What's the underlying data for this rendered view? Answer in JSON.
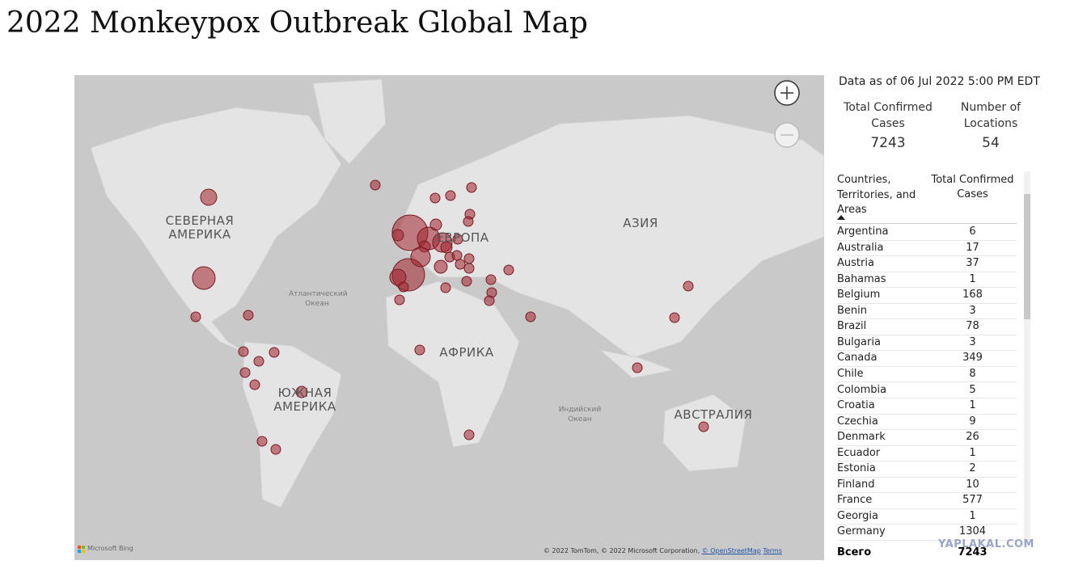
{
  "header": {
    "title": "2022 Monkeypox Outbreak Global Map"
  },
  "map": {
    "labels": [
      "СЕВЕРНАЯ АМЕРИКА",
      "ЕВРОПА",
      "АЗИЯ",
      "АФРИКА",
      "ЮЖНАЯ АМЕРИКА",
      "АВСТРАЛИЯ"
    ],
    "ocean_labels": [
      "Атлантический Океан",
      "Индийский Океан"
    ],
    "provider": "Microsoft Bing",
    "attribution": [
      "© 2022 TomTom, © 2022 Microsoft Corporation,",
      "© OpenStreetMap",
      "Terms"
    ]
  },
  "summary": {
    "as_of": "Data as of 06 Jul 2022 5:00 PM EDT",
    "kpis": [
      {
        "label": "Total Confirmed Cases",
        "value": 7243
      },
      {
        "label": "Number of Locations",
        "value": 54
      }
    ]
  },
  "table": {
    "columns": [
      "Countries, Territories, and Areas",
      "Total Confirmed Cases"
    ],
    "rows": [
      [
        "Argentina",
        6
      ],
      [
        "Australia",
        17
      ],
      [
        "Austria",
        37
      ],
      [
        "Bahamas",
        1
      ],
      [
        "Belgium",
        168
      ],
      [
        "Benin",
        3
      ],
      [
        "Brazil",
        78
      ],
      [
        "Bulgaria",
        3
      ],
      [
        "Canada",
        349
      ],
      [
        "Chile",
        8
      ],
      [
        "Colombia",
        5
      ],
      [
        "Croatia",
        1
      ],
      [
        "Czechia",
        9
      ],
      [
        "Denmark",
        26
      ],
      [
        "Ecuador",
        1
      ],
      [
        "Estonia",
        2
      ],
      [
        "Finland",
        10
      ],
      [
        "France",
        577
      ],
      [
        "Georgia",
        1
      ],
      [
        "Germany",
        1304
      ]
    ],
    "footer": [
      "Всего",
      7243
    ]
  },
  "watermark": "YAPLAKAL.COM"
}
